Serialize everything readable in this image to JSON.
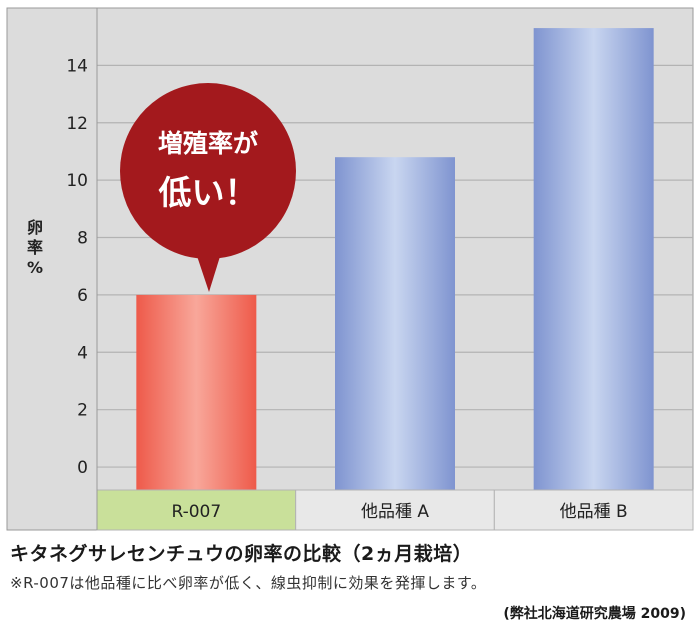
{
  "chart_data": {
    "type": "bar",
    "categories": [
      "R-007",
      "他品種 A",
      "他品種 B"
    ],
    "values": [
      6.0,
      10.8,
      15.3
    ],
    "ylabel": "卵率%",
    "ylim": [
      -0.8,
      16.0
    ],
    "yticks": [
      0,
      2,
      4,
      6,
      8,
      10,
      12,
      14
    ],
    "grid": true,
    "bar_colors": [
      "#f06b5c",
      "#8fa3d8",
      "#8fa3d8"
    ],
    "category_bg": [
      "#c9e09a",
      "#e8e8e8",
      "#e8e8e8"
    ],
    "annotation": {
      "line1": "増殖率が",
      "line2": "低い！",
      "color": "#a3191d"
    }
  },
  "captions": {
    "title": "キタネグサレセンチュウの卵率の比較（2ヵ月栽培）",
    "note": "※R-007は他品種に比べ卵率が低く、線虫抑制に効果を発揮します。",
    "source": "(弊社北海道研究農場 2009)"
  }
}
